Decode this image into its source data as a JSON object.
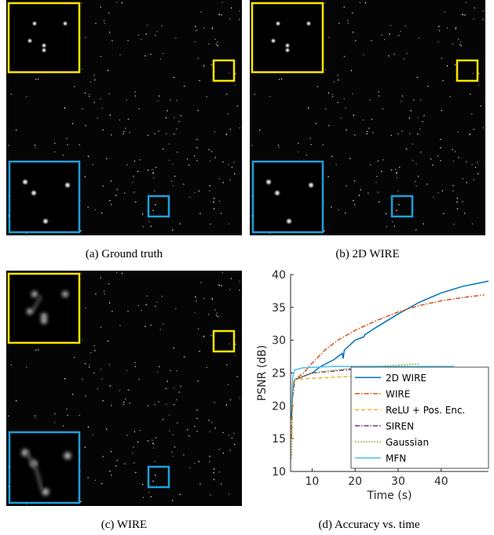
{
  "panels": [
    {
      "caption": "(a) Ground truth"
    },
    {
      "caption": "(b) 2D WIRE"
    },
    {
      "caption": "(c) WIRE"
    }
  ],
  "chart_data": {
    "type": "line",
    "caption": "(d) Accuracy vs. time",
    "x_label": "Time (s)",
    "y_label": "PSNR (dB)",
    "xlim": [
      5,
      51
    ],
    "ylim": [
      10,
      40
    ],
    "xticks": [
      10,
      20,
      30,
      40
    ],
    "yticks": [
      10,
      15,
      20,
      25,
      30,
      35,
      40
    ],
    "legend": "lower right",
    "series": [
      {
        "name": "2D WIRE",
        "color": "#0072bd",
        "linestyle": "solid",
        "x": [
          5.2,
          5.5,
          6,
          8,
          10,
          12,
          15,
          17,
          17.2,
          17.5,
          20,
          22,
          22.2,
          25,
          30,
          35,
          40,
          45,
          51
        ],
        "values": [
          18,
          23,
          24,
          24.5,
          25,
          26,
          27,
          28,
          27.2,
          28.5,
          30,
          30.5,
          30.8,
          32,
          34,
          35.8,
          37.2,
          38.2,
          39
        ]
      },
      {
        "name": "WIRE",
        "color": "#d95319",
        "linestyle": "dashdot",
        "x": [
          5.2,
          5.5,
          6,
          8,
          10,
          13,
          16,
          20,
          25,
          30,
          35,
          40,
          45,
          50
        ],
        "values": [
          15,
          23,
          24,
          25,
          26.5,
          28.5,
          30,
          31.5,
          33,
          34.3,
          35.3,
          36,
          36.5,
          36.9
        ]
      },
      {
        "name": "ReLU + Pos. Enc.",
        "color": "#edb120",
        "linestyle": "dashed",
        "x": [
          5.2,
          5.5,
          6,
          10,
          20,
          28
        ],
        "values": [
          20,
          23,
          24,
          24.2,
          24.5,
          24.8
        ]
      },
      {
        "name": "SIREN",
        "color": "#7e2f8e",
        "linestyle": "dashdot",
        "x": [
          5.2,
          6,
          10,
          20,
          31
        ],
        "values": [
          20,
          24,
          25,
          25.6,
          26
        ]
      },
      {
        "name": "Gaussian",
        "color": "#77ac30",
        "linestyle": "dotted",
        "x": [
          5.2,
          5.5,
          6,
          10,
          20,
          30,
          35
        ],
        "values": [
          12,
          22,
          24,
          25,
          25.8,
          26.2,
          26.4
        ]
      },
      {
        "name": "MFN",
        "color": "#4dbeee",
        "linestyle": "solid",
        "x": [
          5.2,
          5.5,
          6,
          8,
          15,
          30,
          43
        ],
        "values": [
          20,
          24.5,
          25.5,
          25.8,
          26,
          26,
          26
        ]
      }
    ]
  }
}
